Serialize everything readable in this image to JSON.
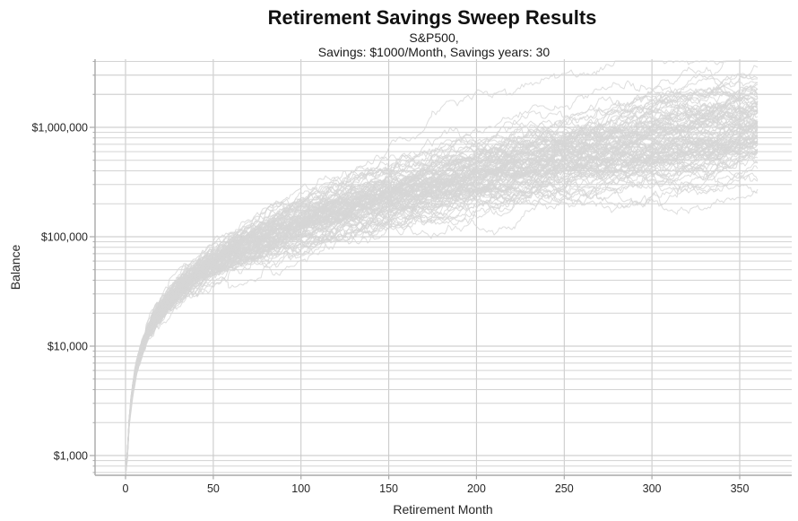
{
  "header": {
    "title": "Retirement Savings Sweep Results",
    "subtitle_line1": "S&P500,",
    "subtitle_line2": "Savings: $1000/Month, Savings years: 30"
  },
  "chart_data": {
    "type": "line",
    "title": "Retirement Savings Sweep Results",
    "subtitle": "S&P500, Savings: $1000/Month, Savings years: 30",
    "xlabel": "Retirement Month",
    "ylabel": "Balance",
    "asset": "S&P500",
    "monthly_savings_usd": 1000,
    "savings_years": 30,
    "months_total": 360,
    "n_traces": 100,
    "y_scale": "log",
    "grid": true,
    "legend": null,
    "xlim": [
      -17,
      380
    ],
    "ylim": [
      650,
      4300000
    ],
    "x_ticks": [
      0,
      50,
      100,
      150,
      200,
      250,
      300,
      350
    ],
    "y_ticks": [
      {
        "value": 1000,
        "label": "$1,000"
      },
      {
        "value": 10000,
        "label": "$10,000"
      },
      {
        "value": 100000,
        "label": "$100,000"
      },
      {
        "value": 1000000,
        "label": "$1,000,000"
      }
    ],
    "envelope": {
      "description": "Approximate spread of the Monte Carlo sweep traces read from the plot",
      "months": [
        1,
        50,
        100,
        150,
        200,
        250,
        300,
        360
      ],
      "min": [
        850,
        16000,
        28000,
        84000,
        157000,
        190000,
        260000,
        430000
      ],
      "median": [
        1000,
        45000,
        100000,
        220000,
        340000,
        500000,
        720000,
        1000000
      ],
      "max": [
        1150,
        100000,
        190000,
        650000,
        1050000,
        1600000,
        2100000,
        2700000
      ]
    },
    "colors": {
      "background": "#ffffff",
      "trace": "#d6d6d6",
      "grid_major": "#c6c6c6",
      "grid_minor": "#d3d3d3",
      "spine": "#a9a9a9",
      "tick_label": "#262626",
      "title": "#111111"
    }
  }
}
